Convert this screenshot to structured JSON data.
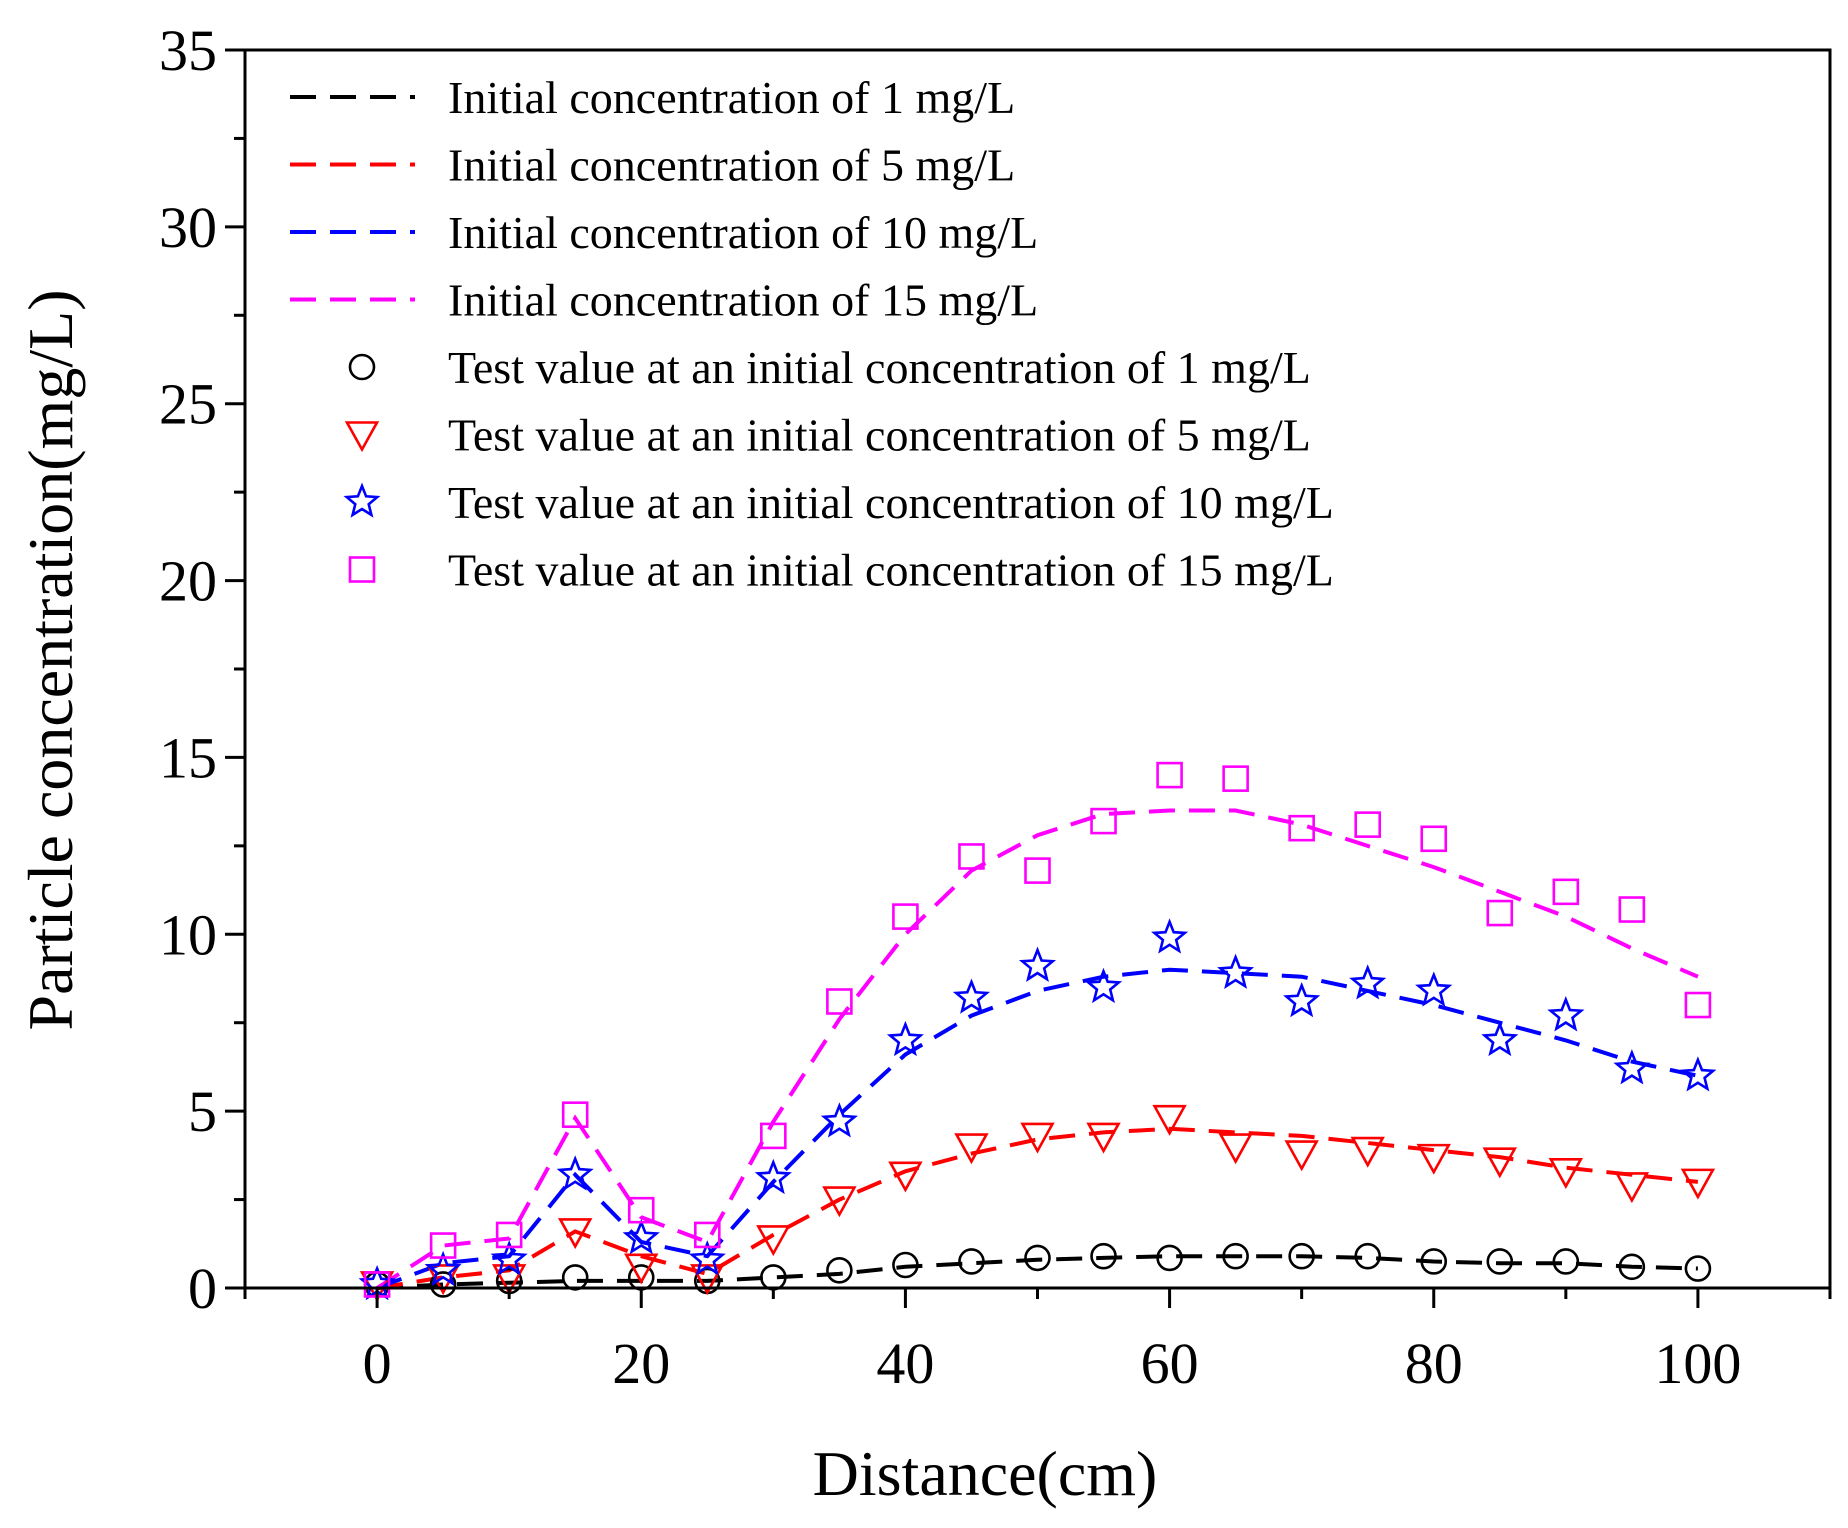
{
  "chart_data": {
    "type": "line",
    "title": "",
    "xlabel": "Distance(cm)",
    "ylabel": "Particle concentration(mg/L)",
    "xlim": [
      -10,
      110
    ],
    "ylim": [
      0,
      35
    ],
    "xticks": [
      0,
      20,
      40,
      60,
      80,
      100
    ],
    "yticks": [
      0,
      5,
      10,
      15,
      20,
      25,
      30,
      35
    ],
    "legend_position": "top-left",
    "x": [
      0,
      5,
      10,
      15,
      20,
      25,
      30,
      35,
      40,
      45,
      50,
      55,
      60,
      65,
      70,
      75,
      80,
      85,
      90,
      95,
      100
    ],
    "series": [
      {
        "name": "Initial concentration of 1 mg/L",
        "kind": "line",
        "color": "#000000",
        "values": [
          0,
          0.1,
          0.15,
          0.2,
          0.2,
          0.2,
          0.3,
          0.4,
          0.6,
          0.7,
          0.8,
          0.85,
          0.9,
          0.9,
          0.9,
          0.85,
          0.75,
          0.7,
          0.7,
          0.6,
          0.55
        ]
      },
      {
        "name": "Initial concentration of 5 mg/L",
        "kind": "line",
        "color": "#ff0000",
        "values": [
          0,
          0.3,
          0.5,
          1.6,
          0.9,
          0.4,
          1.5,
          2.5,
          3.3,
          3.8,
          4.2,
          4.4,
          4.5,
          4.4,
          4.3,
          4.1,
          3.9,
          3.7,
          3.4,
          3.2,
          3.0
        ]
      },
      {
        "name": "Initial concentration of 10 mg/L",
        "kind": "line",
        "color": "#0000ff",
        "values": [
          0,
          0.7,
          0.9,
          3.2,
          1.3,
          0.9,
          3.0,
          4.9,
          6.6,
          7.7,
          8.4,
          8.8,
          9.0,
          8.9,
          8.8,
          8.4,
          8.0,
          7.5,
          7.0,
          6.4,
          6.0
        ]
      },
      {
        "name": "Initial concentration of 15 mg/L",
        "kind": "line",
        "color": "#ff00ff",
        "values": [
          0,
          1.2,
          1.4,
          4.8,
          2.0,
          1.3,
          4.7,
          7.6,
          10.0,
          11.8,
          12.8,
          13.4,
          13.5,
          13.5,
          13.1,
          12.5,
          11.9,
          11.2,
          10.5,
          9.6,
          8.8
        ]
      },
      {
        "name": "Test value at an initial concentration of 1 mg/L",
        "kind": "scatter",
        "marker": "circle",
        "color": "#000000",
        "values": [
          0.1,
          0.1,
          0.2,
          0.3,
          0.3,
          0.2,
          0.3,
          0.5,
          0.65,
          0.75,
          0.85,
          0.9,
          0.85,
          0.9,
          0.9,
          0.9,
          0.75,
          0.75,
          0.75,
          0.6,
          0.55
        ]
      },
      {
        "name": "Test value at an initial concentration of 5 mg/L",
        "kind": "scatter",
        "marker": "triangle-down",
        "color": "#ff0000",
        "values": [
          0.1,
          0.3,
          0.3,
          1.6,
          0.6,
          0.3,
          1.4,
          2.5,
          3.2,
          4.0,
          4.3,
          4.3,
          4.8,
          4.0,
          3.8,
          3.9,
          3.7,
          3.6,
          3.3,
          2.9,
          3.0
        ]
      },
      {
        "name": "Test value at an initial concentration of 10 mg/L",
        "kind": "scatter",
        "marker": "star",
        "color": "#0000ff",
        "values": [
          0.1,
          0.5,
          0.8,
          3.2,
          1.4,
          0.8,
          3.1,
          4.7,
          7.0,
          8.2,
          9.1,
          8.5,
          9.9,
          8.9,
          8.1,
          8.6,
          8.4,
          7.0,
          7.7,
          6.2,
          6.0
        ]
      },
      {
        "name": "Test value at an initial concentration of 15 mg/L",
        "kind": "scatter",
        "marker": "square",
        "color": "#ff00ff",
        "values": [
          0.1,
          1.2,
          1.5,
          4.9,
          2.2,
          1.5,
          4.3,
          8.1,
          10.5,
          12.2,
          11.8,
          13.2,
          14.5,
          14.4,
          13.0,
          13.1,
          12.7,
          10.6,
          11.2,
          10.7,
          8.0
        ]
      }
    ]
  }
}
